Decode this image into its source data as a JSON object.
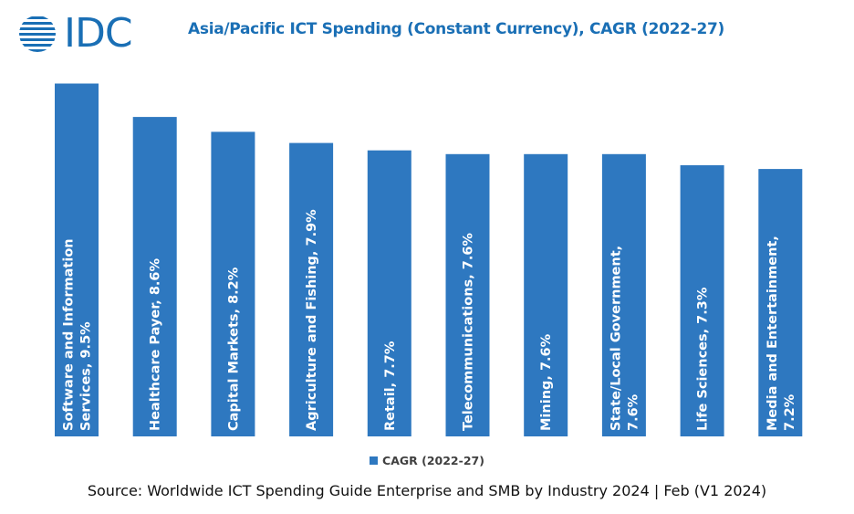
{
  "logo": {
    "text": "IDC"
  },
  "colors": {
    "bar": "#2e78c0",
    "brand": "#1a6fb5",
    "label": "#ffffff"
  },
  "chart_data": {
    "type": "bar",
    "title": "Asia/Pacific ICT Spending (Constant Currency), CAGR (2022-27)",
    "categories": [
      "Software and Information Services",
      "Healthcare Payer",
      "Capital Markets",
      "Agriculture and Fishing",
      "Retail",
      "Telecommunications",
      "Mining",
      "State/Local Government",
      "Life Sciences",
      "Media and Entertainment"
    ],
    "data_labels": [
      [
        "Software and Information",
        "Services, 9.5%"
      ],
      [
        "Healthcare Payer, 8.6%"
      ],
      [
        "Capital Markets, 8.2%"
      ],
      [
        "Agriculture and Fishing, 7.9%"
      ],
      [
        "Retail, 7.7%"
      ],
      [
        "Telecommunications, 7.6%"
      ],
      [
        "Mining, 7.6%"
      ],
      [
        "State/Local Government,",
        "7.6%"
      ],
      [
        "Life Sciences, 7.3%"
      ],
      [
        "Media and Entertainment,",
        "7.2%"
      ]
    ],
    "series": [
      {
        "name": "CAGR (2022-27)",
        "values": [
          9.5,
          8.6,
          8.2,
          7.9,
          7.7,
          7.6,
          7.6,
          7.6,
          7.3,
          7.2
        ]
      }
    ],
    "legend": "bottom-center"
  },
  "source": "Source: Worldwide ICT Spending Guide Enterprise and SMB by Industry 2024 | Feb (V1 2024)"
}
